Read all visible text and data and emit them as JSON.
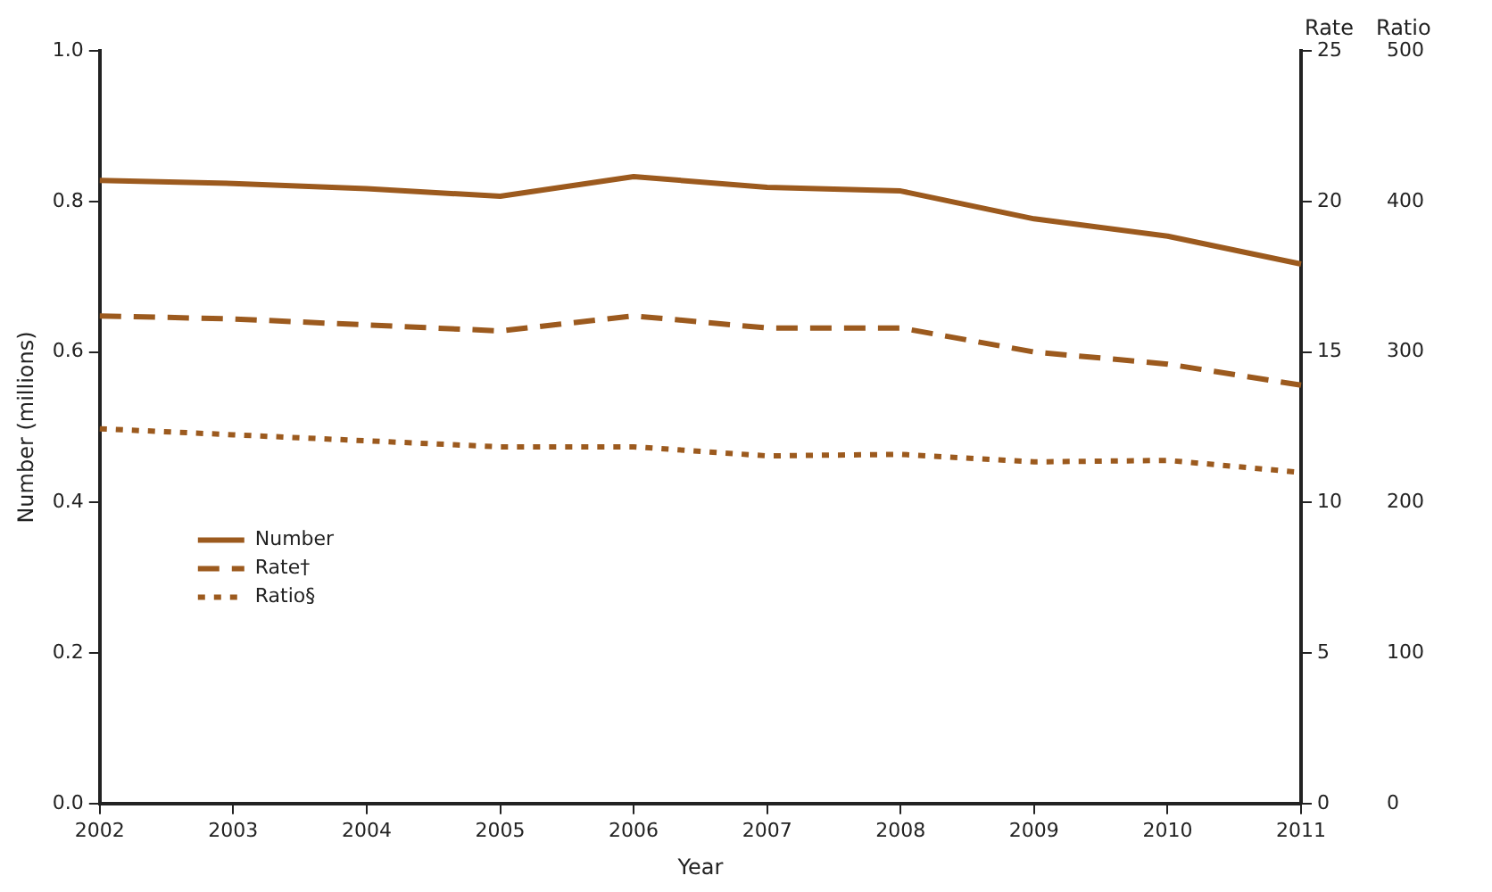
{
  "chart_data": {
    "type": "line",
    "xlabel": "Year",
    "ylabel": "Number (millions)",
    "y2label": "Rate",
    "y3label": "Ratio",
    "categories": [
      "2002",
      "2003",
      "2004",
      "2005",
      "2006",
      "2007",
      "2008",
      "2009",
      "2010",
      "2011"
    ],
    "series": [
      {
        "name": "Number",
        "color": "#9c5a1e",
        "line_style": "solid",
        "values": [
          0.828,
          0.824,
          0.817,
          0.807,
          0.833,
          0.819,
          0.814,
          0.777,
          0.754,
          0.717
        ]
      },
      {
        "name": "Rate†",
        "color": "#9c5a1e",
        "line_style": "dashed",
        "axis": "y2",
        "values": [
          16.2,
          16.1,
          15.9,
          15.7,
          16.2,
          15.8,
          15.8,
          15.0,
          14.6,
          13.9
        ]
      },
      {
        "name": "Ratio§",
        "color": "#9c5a1e",
        "line_style": "dotted",
        "axis": "y3",
        "values": [
          249,
          245,
          241,
          237,
          237,
          231,
          232,
          227,
          228,
          220
        ]
      }
    ],
    "ylim": [
      0,
      1
    ],
    "yticks": [
      {
        "value": 0,
        "label": "0.0"
      },
      {
        "value": 0.2,
        "label": "0.2"
      },
      {
        "value": 0.4,
        "label": "0.4"
      },
      {
        "value": 0.6,
        "label": "0.6"
      },
      {
        "value": 0.8,
        "label": "0.8"
      },
      {
        "value": 1,
        "label": "1.0"
      }
    ],
    "y2lim": [
      0,
      25
    ],
    "y2ticks": [
      0,
      5,
      10,
      15,
      20,
      25
    ],
    "y3lim": [
      0,
      500
    ],
    "y3ticks": [
      0,
      100,
      200,
      300,
      400,
      500
    ],
    "grid": false,
    "legend": "left",
    "marker": "none"
  }
}
